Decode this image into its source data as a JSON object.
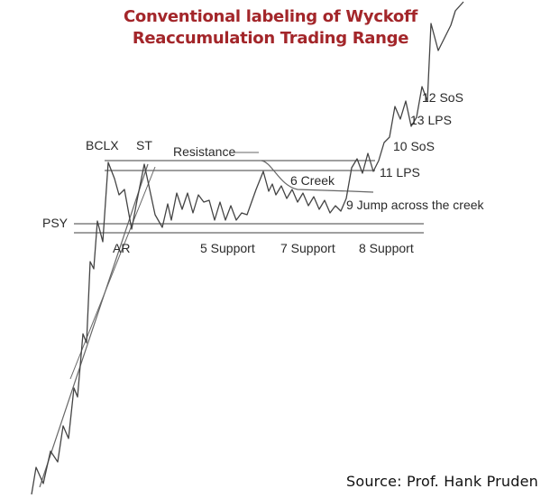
{
  "title_line1": "Conventional labeling of Wyckoff",
  "title_line2": "Reaccumulation Trading Range",
  "source": "Source: Prof. Hank Pruden",
  "labels": {
    "bclx": "BCLX",
    "st": "ST",
    "resistance": "Resistance",
    "psy": "PSY",
    "ar": "AR",
    "support5": "5 Support",
    "support7": "7 Support",
    "support8": "8 Support",
    "creek6": "6 Creek",
    "jump9": "9 Jump across the creek",
    "sos10": "10 SoS",
    "lps11": "11 LPS",
    "sos12": "12 SoS",
    "lps13": "13 LPS"
  },
  "colors": {
    "title": "#a3262a",
    "line": "#555555",
    "price": "#444444",
    "text": "#2a2a2a"
  }
}
